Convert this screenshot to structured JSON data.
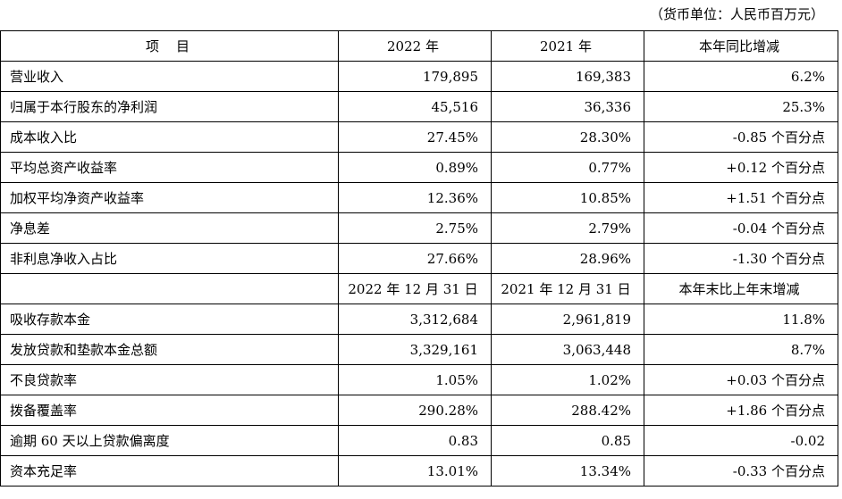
{
  "unit_note": "（货币单位：人民币百万元）",
  "header1": {
    "item": "项    目",
    "col1": "2022 年",
    "col2": "2021 年",
    "col3": "本年同比增减"
  },
  "section1": [
    {
      "label": "营业收入",
      "v2022": "179,895",
      "v2021": "169,383",
      "change": "6.2%"
    },
    {
      "label": "归属于本行股东的净利润",
      "v2022": "45,516",
      "v2021": "36,336",
      "change": "25.3%"
    },
    {
      "label": "成本收入比",
      "v2022": "27.45%",
      "v2021": "28.30%",
      "change": "-0.85 个百分点"
    },
    {
      "label": "平均总资产收益率",
      "v2022": "0.89%",
      "v2021": "0.77%",
      "change": "+0.12 个百分点"
    },
    {
      "label": "加权平均净资产收益率",
      "v2022": "12.36%",
      "v2021": "10.85%",
      "change": "+1.51 个百分点"
    },
    {
      "label": "净息差",
      "v2022": "2.75%",
      "v2021": "2.79%",
      "change": "-0.04 个百分点"
    },
    {
      "label": "非利息净收入占比",
      "v2022": "27.66%",
      "v2021": "28.96%",
      "change": "-1.30 个百分点"
    }
  ],
  "header2": {
    "item": "",
    "col1": "2022 年 12 月 31 日",
    "col2": "2021 年 12 月 31 日",
    "col3": "本年末比上年末增减"
  },
  "section2": [
    {
      "label": "吸收存款本金",
      "v2022": "3,312,684",
      "v2021": "2,961,819",
      "change": "11.8%"
    },
    {
      "label": "发放贷款和垫款本金总额",
      "v2022": "3,329,161",
      "v2021": "3,063,448",
      "change": "8.7%"
    },
    {
      "label": "不良贷款率",
      "v2022": "1.05%",
      "v2021": "1.02%",
      "change": "+0.03 个百分点"
    },
    {
      "label": "拨备覆盖率",
      "v2022": "290.28%",
      "v2021": "288.42%",
      "change": "+1.86 个百分点"
    },
    {
      "label": "逾期 60 天以上贷款偏离度",
      "v2022": "0.83",
      "v2021": "0.85",
      "change": "-0.02"
    },
    {
      "label": "资本充足率",
      "v2022": "13.01%",
      "v2021": "13.34%",
      "change": "-0.33 个百分点"
    }
  ]
}
